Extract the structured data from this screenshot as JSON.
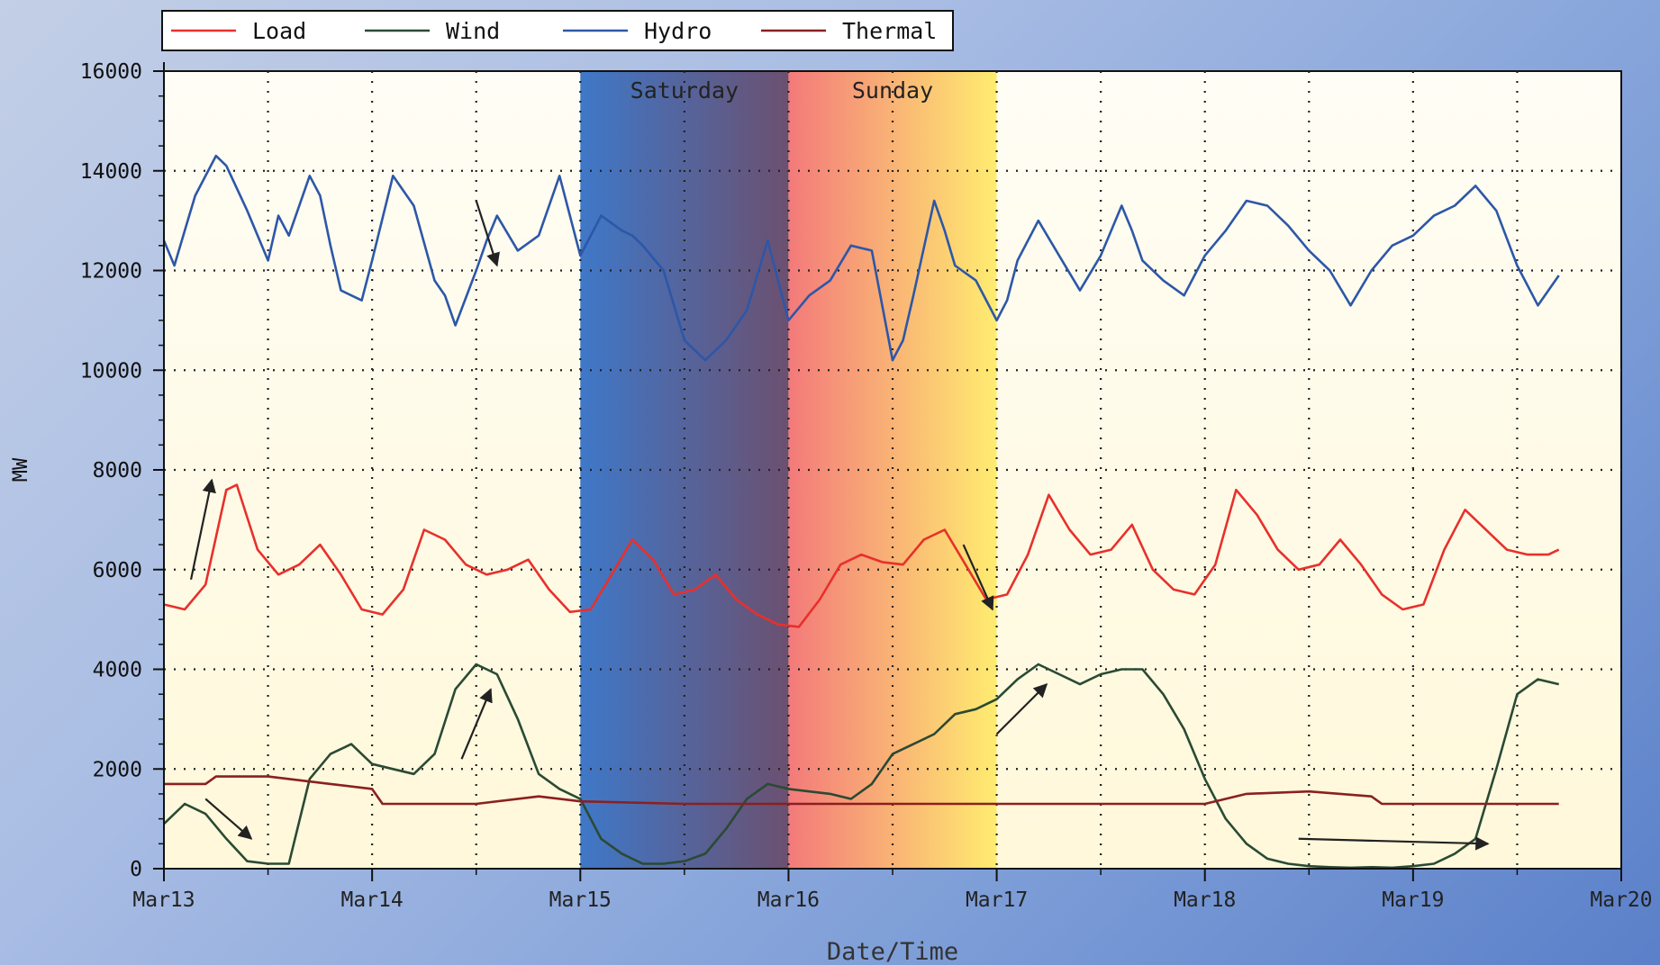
{
  "chart_data": {
    "type": "line",
    "title": "",
    "xlabel": "Date/Time",
    "ylabel": "MW",
    "ylim": [
      0,
      16000
    ],
    "yticks": [
      0,
      2000,
      4000,
      6000,
      8000,
      10000,
      12000,
      14000,
      16000
    ],
    "ytick_labels": [
      "0",
      "2000",
      "4000",
      "6000",
      "8000",
      "10000",
      "12000",
      "14000",
      "16000"
    ],
    "xlim": [
      0,
      7
    ],
    "xticks": [
      0,
      1,
      2,
      3,
      4,
      5,
      6,
      7
    ],
    "xtick_labels": [
      "Mar13",
      "Mar14",
      "Mar15",
      "Mar16",
      "Mar17",
      "Mar18",
      "Mar19",
      "Mar20"
    ],
    "grid": true,
    "legend_position": "top-left, above plot",
    "bands": [
      {
        "label": "Saturday",
        "x0": 2.0,
        "x1": 3.0,
        "color_start": "#3f78c8",
        "color_end": "#6b5070"
      },
      {
        "label": "Sunday",
        "x0": 3.0,
        "x1": 4.0,
        "color_start": "#f37a7a",
        "color_end": "#ffec70"
      }
    ],
    "series": [
      {
        "name": "Load",
        "color": "#e8302c",
        "x": [
          0,
          0.1,
          0.2,
          0.3,
          0.35,
          0.45,
          0.55,
          0.65,
          0.75,
          0.85,
          0.95,
          1.05,
          1.15,
          1.25,
          1.35,
          1.45,
          1.55,
          1.65,
          1.75,
          1.85,
          1.95,
          2.05,
          2.15,
          2.25,
          2.35,
          2.45,
          2.55,
          2.65,
          2.75,
          2.85,
          2.95,
          3.05,
          3.15,
          3.25,
          3.35,
          3.45,
          3.55,
          3.65,
          3.75,
          3.85,
          3.95,
          4.05,
          4.15,
          4.25,
          4.35,
          4.45,
          4.55,
          4.65,
          4.75,
          4.85,
          4.95,
          5.05,
          5.15,
          5.25,
          5.35,
          5.45,
          5.55,
          5.65,
          5.75,
          5.85,
          5.95,
          6.05,
          6.15,
          6.25,
          6.35,
          6.45,
          6.55,
          6.65,
          6.7
        ],
        "y": [
          5300,
          5200,
          5700,
          7600,
          7700,
          6400,
          5900,
          6100,
          6500,
          5900,
          5200,
          5100,
          5600,
          6800,
          6600,
          6100,
          5900,
          6000,
          6200,
          5600,
          5150,
          5200,
          5900,
          6600,
          6200,
          5500,
          5600,
          5900,
          5400,
          5100,
          4900,
          4850,
          5400,
          6100,
          6300,
          6150,
          6100,
          6600,
          6800,
          6100,
          5400,
          5500,
          6300,
          7500,
          6800,
          6300,
          6400,
          6900,
          6000,
          5600,
          5500,
          6100,
          7600,
          7100,
          6400,
          6000,
          6100,
          6600,
          6100,
          5500,
          5200,
          5300,
          6400,
          7200,
          6800,
          6400,
          6300,
          6300,
          6400
        ]
      },
      {
        "name": "Wind",
        "color": "#2a4a34",
        "x": [
          0,
          0.1,
          0.2,
          0.3,
          0.4,
          0.5,
          0.6,
          0.7,
          0.8,
          0.9,
          1.0,
          1.1,
          1.2,
          1.3,
          1.4,
          1.5,
          1.6,
          1.7,
          1.8,
          1.9,
          2.0,
          2.1,
          2.2,
          2.3,
          2.4,
          2.5,
          2.6,
          2.7,
          2.8,
          2.9,
          3.0,
          3.1,
          3.2,
          3.3,
          3.4,
          3.5,
          3.6,
          3.7,
          3.8,
          3.9,
          4.0,
          4.1,
          4.2,
          4.3,
          4.4,
          4.5,
          4.6,
          4.7,
          4.8,
          4.9,
          5.0,
          5.1,
          5.2,
          5.3,
          5.4,
          5.5,
          5.6,
          5.7,
          5.8,
          5.9,
          6.0,
          6.1,
          6.2,
          6.3,
          6.4,
          6.5,
          6.6,
          6.7
        ],
        "y": [
          900,
          1300,
          1100,
          600,
          150,
          100,
          100,
          1800,
          2300,
          2500,
          2100,
          2000,
          1900,
          2300,
          3600,
          4100,
          3900,
          3000,
          1900,
          1600,
          1400,
          600,
          300,
          100,
          100,
          150,
          300,
          800,
          1400,
          1700,
          1600,
          1550,
          1500,
          1400,
          1700,
          2300,
          2500,
          2700,
          3100,
          3200,
          3400,
          3800,
          4100,
          3900,
          3700,
          3900,
          4000,
          4000,
          3500,
          2800,
          1800,
          1000,
          500,
          200,
          100,
          50,
          30,
          20,
          30,
          20,
          50,
          100,
          300,
          600,
          2000,
          3500,
          3800,
          3700
        ]
      },
      {
        "name": "Hydro",
        "color": "#2d57a8",
        "x": [
          0,
          0.05,
          0.1,
          0.15,
          0.25,
          0.3,
          0.4,
          0.5,
          0.55,
          0.6,
          0.7,
          0.75,
          0.8,
          0.85,
          0.95,
          1.0,
          1.1,
          1.2,
          1.3,
          1.35,
          1.4,
          1.5,
          1.55,
          1.6,
          1.7,
          1.8,
          1.9,
          2.0,
          2.1,
          2.2,
          2.25,
          2.3,
          2.4,
          2.5,
          2.6,
          2.7,
          2.8,
          2.9,
          3.0,
          3.1,
          3.2,
          3.3,
          3.4,
          3.5,
          3.55,
          3.6,
          3.7,
          3.75,
          3.8,
          3.9,
          4.0,
          4.05,
          4.1,
          4.2,
          4.3,
          4.4,
          4.5,
          4.6,
          4.65,
          4.7,
          4.8,
          4.9,
          5.0,
          5.1,
          5.2,
          5.3,
          5.4,
          5.5,
          5.6,
          5.7,
          5.8,
          5.9,
          6.0,
          6.1,
          6.2,
          6.3,
          6.4,
          6.5,
          6.6,
          6.7
        ],
        "y": [
          12600,
          12100,
          12800,
          13500,
          14300,
          14100,
          13200,
          12200,
          13100,
          12700,
          13900,
          13500,
          12500,
          11600,
          11400,
          12200,
          13900,
          13300,
          11800,
          11500,
          10900,
          12000,
          12600,
          13100,
          12400,
          12700,
          13900,
          12300,
          13100,
          12800,
          12700,
          12500,
          12000,
          10600,
          10200,
          10600,
          11200,
          12600,
          11000,
          11500,
          11800,
          12500,
          12400,
          10200,
          10600,
          11500,
          13400,
          12800,
          12100,
          11800,
          11000,
          11400,
          12200,
          13000,
          12300,
          11600,
          12300,
          13300,
          12800,
          12200,
          11800,
          11500,
          12300,
          12800,
          13400,
          13300,
          12900,
          12400,
          12000,
          11300,
          12000,
          12500,
          12700,
          13100,
          13300,
          13700,
          13200,
          12100,
          11300,
          11900
        ]
      },
      {
        "name": "Thermal",
        "color": "#8b2020",
        "x": [
          0,
          0.2,
          0.25,
          0.5,
          0.8,
          1.0,
          1.05,
          1.5,
          1.8,
          2.0,
          2.5,
          3.0,
          3.5,
          4.0,
          4.5,
          5.0,
          5.2,
          5.5,
          5.8,
          5.85,
          6.3,
          6.7
        ],
        "y": [
          1700,
          1700,
          1850,
          1850,
          1700,
          1600,
          1300,
          1300,
          1450,
          1350,
          1300,
          1300,
          1300,
          1300,
          1300,
          1300,
          1500,
          1550,
          1450,
          1300,
          1300,
          1300
        ]
      }
    ],
    "annotation_arrows": [
      {
        "x0": 0.13,
        "y0": 5800,
        "x1": 0.23,
        "y1": 7800
      },
      {
        "x0": 1.5,
        "y0": 13400,
        "x1": 1.6,
        "y1": 12100
      },
      {
        "x0": 0.2,
        "y0": 1400,
        "x1": 0.42,
        "y1": 600
      },
      {
        "x0": 1.43,
        "y0": 2200,
        "x1": 1.57,
        "y1": 3600
      },
      {
        "x0": 3.84,
        "y0": 6500,
        "x1": 3.98,
        "y1": 5200
      },
      {
        "x0": 4.0,
        "y0": 2700,
        "x1": 4.24,
        "y1": 3700
      },
      {
        "x0": 5.45,
        "y0": 600,
        "x1": 6.36,
        "y1": 500
      }
    ]
  }
}
